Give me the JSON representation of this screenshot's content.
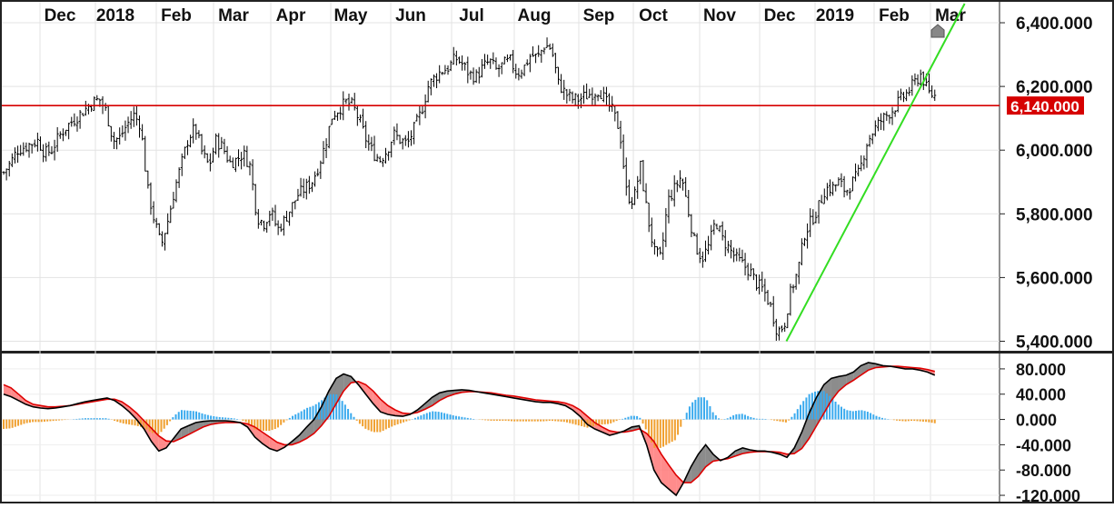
{
  "chart_data": {
    "type": "candlestick",
    "x_tick_labels": [
      "Dec",
      "2018",
      "Feb",
      "Mar",
      "Apr",
      "May",
      "Jun",
      "Jul",
      "Aug",
      "Sep",
      "Oct",
      "Nov",
      "Dec",
      "2019",
      "Feb",
      "Mar"
    ],
    "price_axis": {
      "ticks": [
        5400,
        5600,
        5800,
        6000,
        6200,
        6400
      ],
      "tick_labels": [
        "5,400.000",
        "5,600.000",
        "5,800.000",
        "6,000.000",
        "6,200.000",
        "6,400.000"
      ],
      "ylim": [
        5370,
        6460
      ]
    },
    "price_series": {
      "name": "",
      "approx_close_path": [
        5930,
        5960,
        6000,
        6010,
        6020,
        6030,
        5990,
        6000,
        6040,
        6070,
        6090,
        6110,
        6130,
        6150,
        6160,
        6120,
        6030,
        6040,
        6080,
        6110,
        6080,
        5880,
        5780,
        5700,
        5780,
        5880,
        5960,
        6040,
        6070,
        5990,
        5950,
        6030,
        6010,
        5960,
        5970,
        5990,
        5950,
        5790,
        5770,
        5810,
        5750,
        5780,
        5820,
        5860,
        5880,
        5900,
        5950,
        6020,
        6110,
        6130,
        6150,
        6140,
        6090,
        6030,
        5990,
        5970,
        6000,
        6050,
        6030,
        6020,
        6070,
        6120,
        6200,
        6230,
        6250,
        6260,
        6290,
        6270,
        6240,
        6230,
        6260,
        6280,
        6250,
        6270,
        6280,
        6240,
        6260,
        6300,
        6290,
        6330,
        6320,
        6210,
        6180,
        6160,
        6160,
        6170,
        6180,
        6190,
        6150,
        6120,
        6060,
        5860,
        5840,
        5950,
        5800,
        5680,
        5660,
        5840,
        5880,
        5920,
        5810,
        5700,
        5660,
        5700,
        5780,
        5720,
        5690,
        5660,
        5640,
        5620,
        5580,
        5560,
        5510,
        5430,
        5450,
        5560,
        5620,
        5740,
        5780,
        5820,
        5880,
        5880,
        5900,
        5870,
        5900,
        5930,
        6020,
        6060,
        6090,
        6110,
        6130,
        6160,
        6180,
        6210,
        6240,
        6180,
        6170
      ],
      "x_range_fraction": [
        0.0,
        0.935
      ]
    },
    "horizontal_line": {
      "value": 6140,
      "label": "6,140.000",
      "color": "#d60000"
    },
    "trend_line": {
      "color": "#33dd22",
      "start": {
        "x_fraction": 0.786,
        "value": 5400
      },
      "end": {
        "x_fraction": 0.965,
        "value": 6460
      }
    },
    "oscillator": {
      "type": "MACD",
      "ticks": [
        80,
        40,
        0,
        -40,
        -80,
        -120
      ],
      "tick_labels": [
        "80.000",
        "40.000",
        "0.000",
        "-40.000",
        "-80.000",
        "-120.000"
      ],
      "ylim": [
        -130,
        100
      ],
      "macd_line": [
        40,
        36,
        30,
        24,
        20,
        18,
        17,
        18,
        20,
        22,
        25,
        28,
        30,
        32,
        34,
        30,
        22,
        12,
        0,
        -15,
        -35,
        -50,
        -45,
        -30,
        -15,
        -10,
        -5,
        -3,
        -2,
        -2,
        -2,
        -3,
        -5,
        -12,
        -28,
        -38,
        -46,
        -50,
        -44,
        -35,
        -25,
        -12,
        0,
        20,
        45,
        65,
        72,
        68,
        55,
        40,
        25,
        12,
        8,
        6,
        5,
        8,
        15,
        25,
        35,
        42,
        45,
        46,
        47,
        46,
        44,
        42,
        40,
        38,
        36,
        34,
        32,
        30,
        28,
        27,
        27,
        25,
        22,
        15,
        5,
        -8,
        -15,
        -20,
        -25,
        -22,
        -18,
        -12,
        -10,
        -40,
        -80,
        -100,
        -110,
        -120,
        -100,
        -75,
        -55,
        -40,
        -55,
        -65,
        -60,
        -50,
        -45,
        -48,
        -50,
        -50,
        -52,
        -55,
        -60,
        -45,
        -20,
        10,
        35,
        55,
        65,
        68,
        70,
        75,
        85,
        90,
        88,
        85,
        84,
        82,
        80,
        80,
        78,
        75,
        70
      ],
      "signal_line": [
        55,
        50,
        40,
        30,
        24,
        22,
        20,
        20,
        21,
        22,
        24,
        26,
        28,
        30,
        32,
        32,
        28,
        20,
        10,
        -2,
        -14,
        -26,
        -34,
        -35,
        -30,
        -24,
        -18,
        -12,
        -8,
        -6,
        -5,
        -5,
        -5,
        -7,
        -12,
        -20,
        -28,
        -36,
        -40,
        -40,
        -36,
        -30,
        -22,
        -10,
        5,
        25,
        45,
        58,
        60,
        55,
        45,
        32,
        22,
        15,
        10,
        9,
        11,
        16,
        22,
        30,
        36,
        40,
        43,
        44,
        44,
        43,
        42,
        40,
        38,
        37,
        35,
        33,
        31,
        30,
        29,
        28,
        26,
        22,
        15,
        5,
        -5,
        -12,
        -18,
        -20,
        -20,
        -18,
        -15,
        -22,
        -35,
        -55,
        -72,
        -88,
        -100,
        -100,
        -90,
        -75,
        -66,
        -64,
        -62,
        -58,
        -54,
        -52,
        -51,
        -51,
        -51,
        -52,
        -55,
        -54,
        -46,
        -30,
        -10,
        10,
        30,
        45,
        55,
        62,
        70,
        78,
        82,
        83,
        84,
        84,
        83,
        82,
        81,
        79,
        76
      ],
      "macd_color": "#000000",
      "signal_color": "#dd0000",
      "fill_up_color": "#666666",
      "fill_down_color": "#ff6666",
      "hist_pos_color": "#3aaaee",
      "hist_neg_color": "#f0a030",
      "x_range_fraction": [
        0.0,
        0.935
      ]
    },
    "marker": {
      "name": "triangle-up",
      "x_fraction": 0.938,
      "color": "#888888"
    }
  }
}
